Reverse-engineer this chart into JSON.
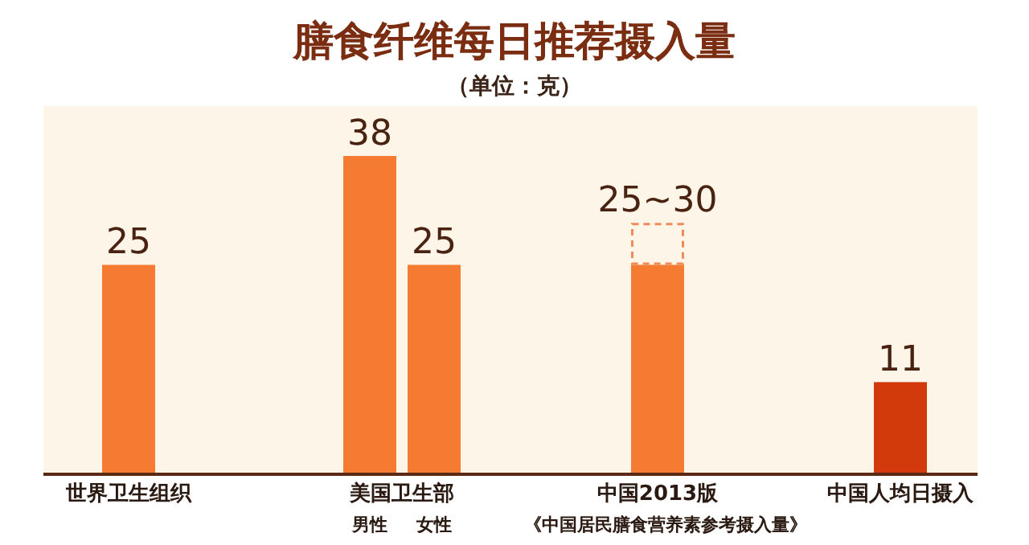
{
  "chart_data": {
    "type": "bar",
    "title": "膳食纤维每日推荐摄入量",
    "subtitle": "（单位：克）",
    "stacked": true,
    "categories": [
      "世界卫生组织",
      "男性",
      "女性",
      "中国2013版",
      "中国人均日摄入"
    ],
    "series": [
      {
        "colors": [
          "#f57a32",
          "#f57a32",
          "#f57a32",
          "#f57a32",
          "#d23a0c"
        ],
        "values": [
          25,
          38,
          25,
          25,
          11
        ],
        "value_labels": [
          "25",
          "38",
          "25",
          "25~30",
          "11"
        ]
      },
      {
        "color": "#f08a5a",
        "line_style": "dashed",
        "values": [
          null,
          null,
          null,
          5,
          null
        ]
      }
    ],
    "annotations": [
      "美国卫生部",
      "《中国居民膳食营养素参考摄入量》"
    ]
  }
}
